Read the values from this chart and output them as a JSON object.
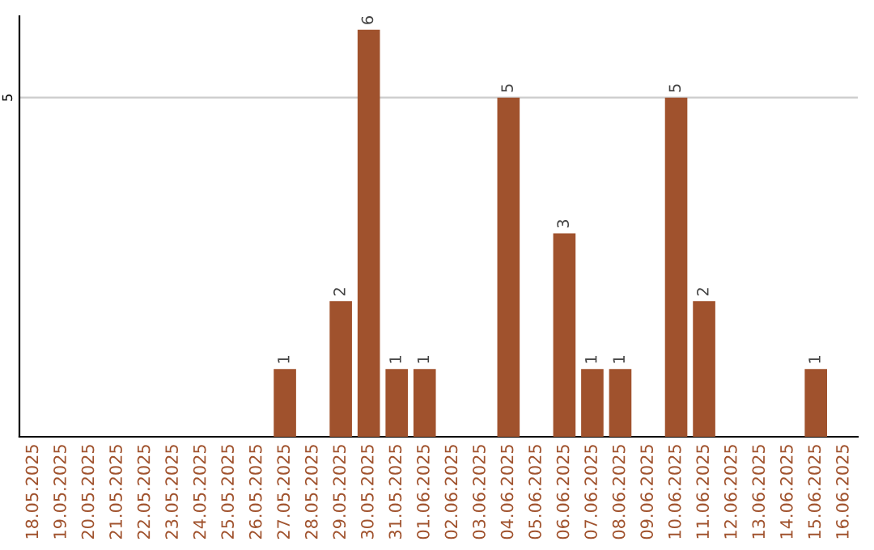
{
  "chart_data": {
    "type": "bar",
    "categories": [
      "18.05.2025",
      "19.05.2025",
      "20.05.2025",
      "21.05.2025",
      "22.05.2025",
      "23.05.2025",
      "24.05.2025",
      "25.05.2025",
      "26.05.2025",
      "27.05.2025",
      "28.05.2025",
      "29.05.2025",
      "30.05.2025",
      "31.05.2025",
      "01.06.2025",
      "02.06.2025",
      "03.06.2025",
      "04.06.2025",
      "05.06.2025",
      "06.06.2025",
      "07.06.2025",
      "08.06.2025",
      "09.06.2025",
      "10.06.2025",
      "11.06.2025",
      "12.06.2025",
      "13.06.2025",
      "14.06.2025",
      "15.06.2025",
      "16.06.2025"
    ],
    "values": [
      0,
      0,
      0,
      0,
      0,
      0,
      0,
      0,
      0,
      1,
      0,
      2,
      6,
      1,
      1,
      0,
      0,
      5,
      0,
      3,
      1,
      1,
      0,
      5,
      2,
      0,
      0,
      0,
      1,
      0
    ],
    "value_labels": [
      null,
      null,
      null,
      null,
      null,
      null,
      null,
      null,
      null,
      "1",
      null,
      "2",
      "6",
      "1",
      "1",
      null,
      null,
      "5",
      null,
      "3",
      "1",
      "1",
      null,
      "5",
      "2",
      null,
      null,
      null,
      "1",
      null
    ],
    "color": "#a0522d",
    "ylim": [
      0,
      6.2
    ],
    "yticks": [
      5
    ],
    "grid": "y"
  }
}
